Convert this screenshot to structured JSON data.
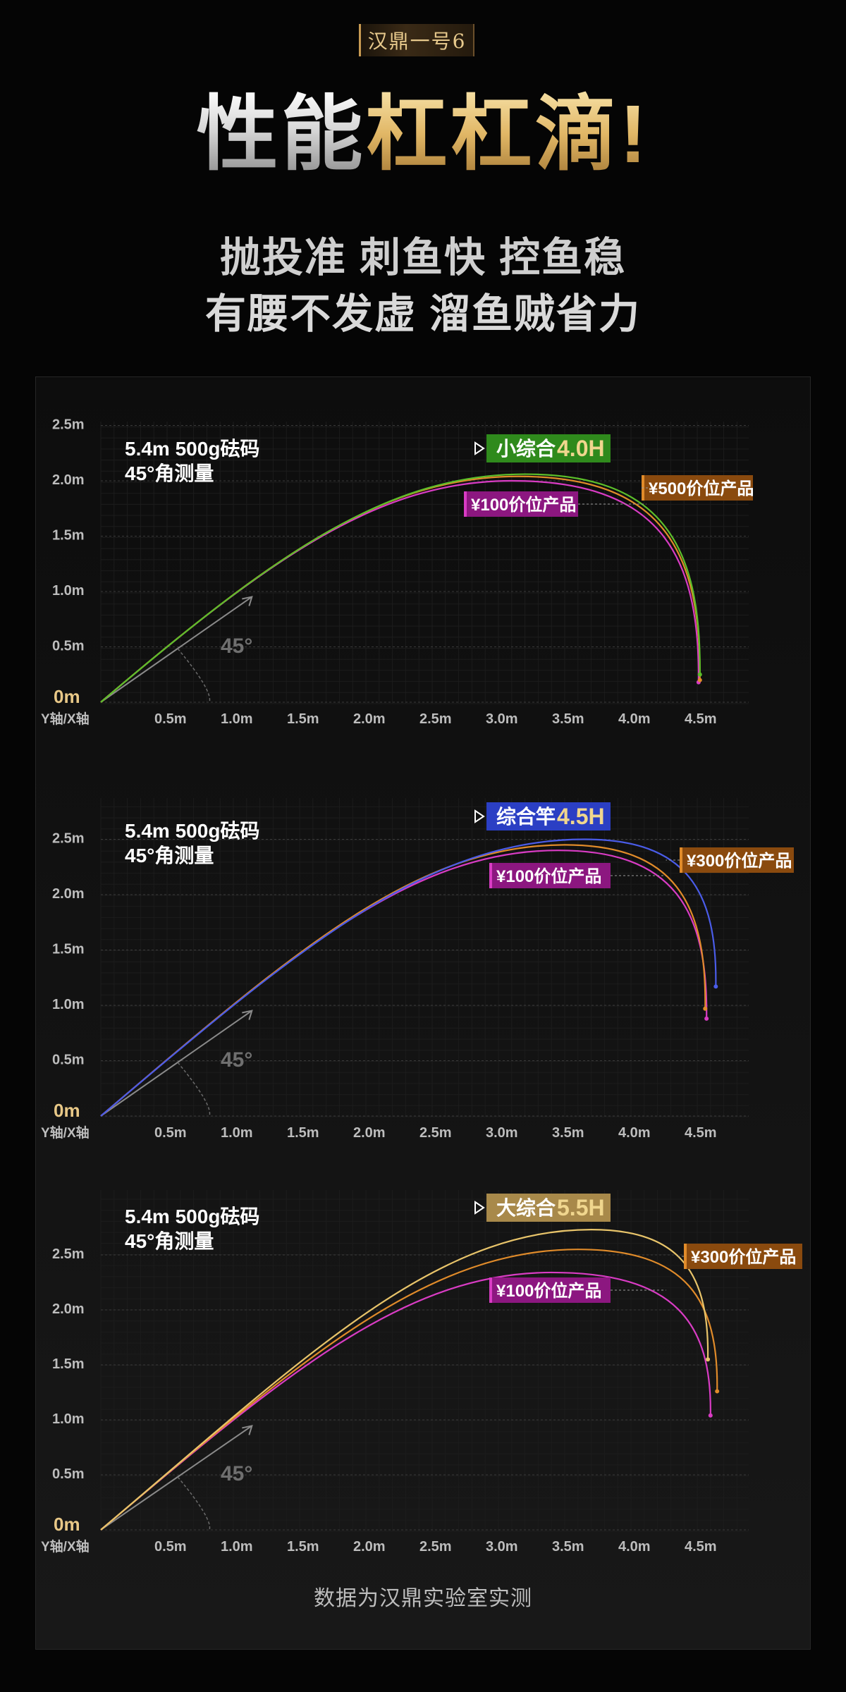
{
  "brand_badge": "汉鼎一号6",
  "headline": {
    "part1": "性能",
    "part2": "杠杠滴!"
  },
  "subtitle_line1": "抛投准 刺鱼快 控鱼稳",
  "subtitle_line2": "有腰不发虚 溜鱼贼省力",
  "footnote": "数据为汉鼎实验室实测",
  "colors": {
    "gold": "#e8c887",
    "gray_arrow": "#8a8a8a"
  },
  "chart_data": [
    {
      "type": "line",
      "model_tag": {
        "prefix": "小综合",
        "value": "4.0H",
        "color": "#2f8a1c"
      },
      "annotation": {
        "line1": "5.4m 500g砝码",
        "line2": "45°角测量"
      },
      "angle_label": "45°",
      "axis_corner_label": "Y轴/X轴",
      "x_ticks": [
        "0.5m",
        "1.0m",
        "1.5m",
        "2.0m",
        "2.5m",
        "3.0m",
        "3.5m",
        "4.0m",
        "4.5m"
      ],
      "y_ticks": [
        "0m",
        "0.5m",
        "1.0m",
        "1.5m",
        "2.0m",
        "2.5m"
      ],
      "xlim": [
        0,
        5.0
      ],
      "ylim": [
        0,
        2.6
      ],
      "series": [
        {
          "name": "小综合4.0H",
          "color": "#5cbf2a",
          "peak": [
            3.2,
            2.06
          ],
          "end": [
            4.52,
            0.25
          ]
        },
        {
          "name": "¥500价位产品",
          "color": "#e08b2a",
          "peak": [
            3.15,
            2.04
          ],
          "end": [
            4.52,
            0.2
          ]
        },
        {
          "name": "¥100价位产品",
          "color": "#d93cc4",
          "peak": [
            3.1,
            2.0
          ],
          "end": [
            4.51,
            0.18
          ]
        }
      ],
      "labels": [
        {
          "text": "¥500价位产品",
          "style": "orange"
        },
        {
          "text": "¥100价位产品",
          "style": "magenta"
        }
      ]
    },
    {
      "type": "line",
      "model_tag": {
        "prefix": "综合竿",
        "value": "4.5H",
        "color": "#2b3fc4"
      },
      "annotation": {
        "line1": "5.4m 500g砝码",
        "line2": "45°角测量"
      },
      "angle_label": "45°",
      "axis_corner_label": "Y轴/X轴",
      "x_ticks": [
        "0.5m",
        "1.0m",
        "1.5m",
        "2.0m",
        "2.5m",
        "3.0m",
        "3.5m",
        "4.0m",
        "4.5m"
      ],
      "y_ticks": [
        "0m",
        "0.5m",
        "1.0m",
        "1.5m",
        "2.0m",
        "2.5m"
      ],
      "xlim": [
        0,
        5.0
      ],
      "ylim": [
        0,
        2.85
      ],
      "series": [
        {
          "name": "综合竿4.5H",
          "color": "#4a5ce8",
          "peak": [
            3.65,
            2.5
          ],
          "end": [
            4.64,
            1.17
          ]
        },
        {
          "name": "¥300价位产品",
          "color": "#e08b2a",
          "peak": [
            3.5,
            2.45
          ],
          "end": [
            4.56,
            0.97
          ]
        },
        {
          "name": "¥100价位产品",
          "color": "#d93cc4",
          "peak": [
            3.45,
            2.4
          ],
          "end": [
            4.57,
            0.88
          ]
        }
      ],
      "labels": [
        {
          "text": "¥300价位产品",
          "style": "orange"
        },
        {
          "text": "¥100价位产品",
          "style": "magenta"
        }
      ]
    },
    {
      "type": "line",
      "model_tag": {
        "prefix": "大综合",
        "value": "5.5H",
        "color": "#a8894a"
      },
      "annotation": {
        "line1": "5.4m 500g砝码",
        "line2": "45°角测量"
      },
      "angle_label": "45°",
      "axis_corner_label": "Y轴/X轴",
      "x_ticks": [
        "0.5m",
        "1.0m",
        "1.5m",
        "2.0m",
        "2.5m",
        "3.0m",
        "3.5m",
        "4.0m",
        "4.5m"
      ],
      "y_ticks": [
        "0m",
        "0.5m",
        "1.0m",
        "1.5m",
        "2.0m",
        "2.5m"
      ],
      "xlim": [
        0,
        5.0
      ],
      "ylim": [
        0,
        3.0
      ],
      "series": [
        {
          "name": "大综合5.5H",
          "color": "#e8c46a",
          "peak": [
            3.7,
            2.73
          ],
          "end": [
            4.58,
            1.55
          ]
        },
        {
          "name": "¥300价位产品",
          "color": "#e08b2a",
          "peak": [
            3.6,
            2.55
          ],
          "end": [
            4.65,
            1.26
          ]
        },
        {
          "name": "¥100价位产品",
          "color": "#d93cc4",
          "peak": [
            3.4,
            2.34
          ],
          "end": [
            4.6,
            1.04
          ]
        }
      ],
      "labels": [
        {
          "text": "¥300价位产品",
          "style": "orange"
        },
        {
          "text": "¥100价位产品",
          "style": "magenta"
        }
      ]
    }
  ]
}
